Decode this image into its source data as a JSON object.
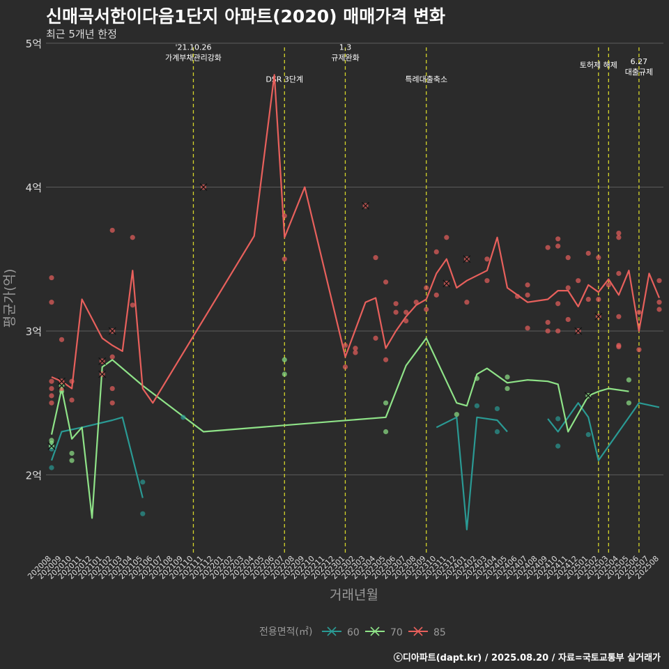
{
  "title": "신매곡서한이다음1단지 아파트(2020) 매매가격 변화",
  "subtitle": "최근 5개년 한정",
  "caption": "ⓒ디아파트(dapt.kr) / 2025.08.20 / 자료=국토교통부 실거래가",
  "chart_data": {
    "type": "line",
    "xlabel": "거래년월",
    "ylabel": "평균가(억)",
    "ylim": [
      1.45,
      5.0
    ],
    "yticks": [
      2,
      3,
      4,
      5
    ],
    "ytick_labels": [
      "2억",
      "3억",
      "4억",
      "5억"
    ],
    "grid": true,
    "legend_title": "전용면적(㎡)",
    "legend_position": "bottom",
    "categories": [
      "202008",
      "202009",
      "202010",
      "202011",
      "202012",
      "202101",
      "202102",
      "202103",
      "202104",
      "202105",
      "202106",
      "202107",
      "202108",
      "202109",
      "202110",
      "202111",
      "202112",
      "202201",
      "202202",
      "202203",
      "202204",
      "202205",
      "202206",
      "202207",
      "202208",
      "202209",
      "202210",
      "202211",
      "202212",
      "202301",
      "202302",
      "202303",
      "202304",
      "202305",
      "202306",
      "202307",
      "202308",
      "202309",
      "202310",
      "202311",
      "202312",
      "202401",
      "202402",
      "202403",
      "202404",
      "202405",
      "202406",
      "202407",
      "202408",
      "202409",
      "202410",
      "202411",
      "202412",
      "202501",
      "202502",
      "202503",
      "202504",
      "202505",
      "202506",
      "202507",
      "202508"
    ],
    "series": [
      {
        "name": "60",
        "color": "#2a9a94",
        "points": [
          [
            "202008",
            2.1
          ],
          [
            "202009",
            2.3
          ],
          [
            "202011",
            2.33
          ],
          [
            "202102",
            2.38
          ],
          [
            "202103",
            2.4
          ],
          [
            "202105",
            1.84
          ]
        ]
      },
      {
        "name": "60",
        "color": "#2a9a94",
        "points": [
          [
            "202310",
            2.33
          ],
          [
            "202312",
            2.4
          ],
          [
            "202401",
            1.62
          ],
          [
            "202402",
            2.4
          ],
          [
            "202404",
            2.38
          ],
          [
            "202405",
            2.3
          ]
        ]
      },
      {
        "name": "60",
        "color": "#2a9a94",
        "points": [
          [
            "202409",
            2.39
          ],
          [
            "202410",
            2.3
          ],
          [
            "202412",
            2.5
          ],
          [
            "202501",
            2.4
          ],
          [
            "202502",
            2.1
          ],
          [
            "202506",
            2.5
          ],
          [
            "202508",
            2.47
          ]
        ]
      },
      {
        "name": "70",
        "color": "#8fe388",
        "points": [
          [
            "202008",
            2.28
          ],
          [
            "202009",
            2.6
          ],
          [
            "202010",
            2.25
          ],
          [
            "202011",
            2.33
          ],
          [
            "202012",
            1.7
          ],
          [
            "202101",
            2.75
          ],
          [
            "202102",
            2.8
          ],
          [
            "202105",
            2.62
          ],
          [
            "202111",
            2.3
          ],
          [
            "202305",
            2.4
          ],
          [
            "202307",
            2.76
          ],
          [
            "202309",
            2.95
          ],
          [
            "202312",
            2.5
          ],
          [
            "202401",
            2.48
          ],
          [
            "202402",
            2.7
          ],
          [
            "202403",
            2.74
          ],
          [
            "202405",
            2.64
          ],
          [
            "202407",
            2.66
          ],
          [
            "202409",
            2.65
          ],
          [
            "202410",
            2.63
          ],
          [
            "202411",
            2.3
          ],
          [
            "202501",
            2.55
          ],
          [
            "202502",
            2.58
          ],
          [
            "202503",
            2.6
          ],
          [
            "202505",
            2.58
          ]
        ]
      },
      {
        "name": "85",
        "color": "#e8605c",
        "points": [
          [
            "202008",
            2.68
          ],
          [
            "202009",
            2.65
          ],
          [
            "202010",
            2.6
          ],
          [
            "202011",
            3.22
          ],
          [
            "202101",
            2.95
          ],
          [
            "202102",
            2.9
          ],
          [
            "202103",
            2.86
          ],
          [
            "202104",
            3.42
          ],
          [
            "202105",
            2.6
          ],
          [
            "202106",
            2.5
          ],
          [
            "202204",
            3.66
          ],
          [
            "202206",
            4.78
          ],
          [
            "202207",
            3.65
          ],
          [
            "202209",
            4.0
          ],
          [
            "202301",
            2.82
          ],
          [
            "202303",
            3.2
          ],
          [
            "202304",
            3.23
          ],
          [
            "202305",
            2.88
          ],
          [
            "202306",
            3.0
          ],
          [
            "202307",
            3.1
          ],
          [
            "202308",
            3.18
          ],
          [
            "202309",
            3.22
          ],
          [
            "202310",
            3.4
          ],
          [
            "202311",
            3.5
          ],
          [
            "202312",
            3.3
          ],
          [
            "202401",
            3.35
          ],
          [
            "202403",
            3.42
          ],
          [
            "202404",
            3.65
          ],
          [
            "202405",
            3.3
          ],
          [
            "202406",
            3.25
          ],
          [
            "202407",
            3.2
          ],
          [
            "202409",
            3.22
          ],
          [
            "202410",
            3.28
          ],
          [
            "202411",
            3.28
          ],
          [
            "202412",
            3.17
          ],
          [
            "202501",
            3.32
          ],
          [
            "202502",
            3.27
          ],
          [
            "202503",
            3.36
          ],
          [
            "202504",
            3.25
          ],
          [
            "202505",
            3.42
          ],
          [
            "202506",
            3.0
          ],
          [
            "202507",
            3.4
          ],
          [
            "202508",
            3.23
          ]
        ]
      }
    ],
    "scatter_points": [
      {
        "series": "60",
        "x": "202008",
        "y": 2.05
      },
      {
        "series": "60",
        "x": "202008",
        "y": 2.18
      },
      {
        "series": "60",
        "x": "202105",
        "y": 1.73
      },
      {
        "series": "60",
        "x": "202105",
        "y": 1.95
      },
      {
        "series": "60",
        "x": "202109",
        "y": 2.4
      },
      {
        "series": "60",
        "x": "202402",
        "y": 2.48
      },
      {
        "series": "60",
        "x": "202404",
        "y": 2.3
      },
      {
        "series": "60",
        "x": "202404",
        "y": 2.46
      },
      {
        "series": "60",
        "x": "202410",
        "y": 2.2
      },
      {
        "series": "60",
        "x": "202410",
        "y": 2.39
      },
      {
        "series": "60",
        "x": "202501",
        "y": 2.28
      },
      {
        "series": "70",
        "x": "202008",
        "y": 2.24
      },
      {
        "series": "70",
        "x": "202008",
        "y": 2.22
      },
      {
        "series": "70",
        "x": "202009",
        "y": 2.58
      },
      {
        "series": "70",
        "x": "202010",
        "y": 2.1
      },
      {
        "series": "70",
        "x": "202010",
        "y": 2.15
      },
      {
        "series": "70",
        "x": "202207",
        "y": 2.7
      },
      {
        "series": "70",
        "x": "202207",
        "y": 2.8
      },
      {
        "series": "70",
        "x": "202305",
        "y": 2.5
      },
      {
        "series": "70",
        "x": "202305",
        "y": 2.3
      },
      {
        "series": "70",
        "x": "202312",
        "y": 2.42
      },
      {
        "series": "70",
        "x": "202402",
        "y": 2.67
      },
      {
        "series": "70",
        "x": "202405",
        "y": 2.6
      },
      {
        "series": "70",
        "x": "202405",
        "y": 2.68
      },
      {
        "series": "70",
        "x": "202505",
        "y": 2.5
      },
      {
        "series": "70",
        "x": "202505",
        "y": 2.66
      },
      {
        "series": "85",
        "x": "202008",
        "y": 3.37
      },
      {
        "series": "85",
        "x": "202008",
        "y": 3.2
      },
      {
        "series": "85",
        "x": "202008",
        "y": 2.65
      },
      {
        "series": "85",
        "x": "202008",
        "y": 2.6
      },
      {
        "series": "85",
        "x": "202008",
        "y": 2.55
      },
      {
        "series": "85",
        "x": "202008",
        "y": 2.5
      },
      {
        "series": "85",
        "x": "202009",
        "y": 2.94
      },
      {
        "series": "85",
        "x": "202009",
        "y": 2.6
      },
      {
        "series": "85",
        "x": "202010",
        "y": 2.52
      },
      {
        "series": "85",
        "x": "202010",
        "y": 2.65
      },
      {
        "series": "85",
        "x": "202102",
        "y": 3.7
      },
      {
        "series": "85",
        "x": "202102",
        "y": 2.82
      },
      {
        "series": "85",
        "x": "202102",
        "y": 2.6
      },
      {
        "series": "85",
        "x": "202102",
        "y": 2.5
      },
      {
        "series": "85",
        "x": "202104",
        "y": 3.65
      },
      {
        "series": "85",
        "x": "202104",
        "y": 3.18
      },
      {
        "series": "85",
        "x": "202207",
        "y": 3.8
      },
      {
        "series": "85",
        "x": "202207",
        "y": 3.5
      },
      {
        "series": "85",
        "x": "202301",
        "y": 2.75
      },
      {
        "series": "85",
        "x": "202301",
        "y": 2.9
      },
      {
        "series": "85",
        "x": "202302",
        "y": 2.88
      },
      {
        "series": "85",
        "x": "202302",
        "y": 2.85
      },
      {
        "series": "85",
        "x": "202304",
        "y": 3.51
      },
      {
        "series": "85",
        "x": "202304",
        "y": 2.95
      },
      {
        "series": "85",
        "x": "202305",
        "y": 3.34
      },
      {
        "series": "85",
        "x": "202305",
        "y": 2.8
      },
      {
        "series": "85",
        "x": "202306",
        "y": 3.19
      },
      {
        "series": "85",
        "x": "202306",
        "y": 3.13
      },
      {
        "series": "85",
        "x": "202307",
        "y": 3.13
      },
      {
        "series": "85",
        "x": "202307",
        "y": 3.07
      },
      {
        "series": "85",
        "x": "202308",
        "y": 3.2
      },
      {
        "series": "85",
        "x": "202309",
        "y": 3.3
      },
      {
        "series": "85",
        "x": "202309",
        "y": 3.15
      },
      {
        "series": "85",
        "x": "202310",
        "y": 3.55
      },
      {
        "series": "85",
        "x": "202310",
        "y": 3.25
      },
      {
        "series": "85",
        "x": "202311",
        "y": 3.65
      },
      {
        "series": "85",
        "x": "202401",
        "y": 3.2
      },
      {
        "series": "85",
        "x": "202403",
        "y": 3.5
      },
      {
        "series": "85",
        "x": "202403",
        "y": 3.35
      },
      {
        "series": "85",
        "x": "202406",
        "y": 3.24
      },
      {
        "series": "85",
        "x": "202407",
        "y": 3.32
      },
      {
        "series": "85",
        "x": "202407",
        "y": 3.25
      },
      {
        "series": "85",
        "x": "202407",
        "y": 3.02
      },
      {
        "series": "85",
        "x": "202409",
        "y": 3.58
      },
      {
        "series": "85",
        "x": "202409",
        "y": 3.06
      },
      {
        "series": "85",
        "x": "202409",
        "y": 3.0
      },
      {
        "series": "85",
        "x": "202410",
        "y": 3.64
      },
      {
        "series": "85",
        "x": "202410",
        "y": 3.59
      },
      {
        "series": "85",
        "x": "202410",
        "y": 3.19
      },
      {
        "series": "85",
        "x": "202410",
        "y": 3.0
      },
      {
        "series": "85",
        "x": "202411",
        "y": 3.51
      },
      {
        "series": "85",
        "x": "202411",
        "y": 3.3
      },
      {
        "series": "85",
        "x": "202411",
        "y": 3.08
      },
      {
        "series": "85",
        "x": "202412",
        "y": 3.35
      },
      {
        "series": "85",
        "x": "202501",
        "y": 3.54
      },
      {
        "series": "85",
        "x": "202501",
        "y": 3.22
      },
      {
        "series": "85",
        "x": "202502",
        "y": 3.51
      },
      {
        "series": "85",
        "x": "202502",
        "y": 3.22
      },
      {
        "series": "85",
        "x": "202503",
        "y": 3.32
      },
      {
        "series": "85",
        "x": "202504",
        "y": 3.68
      },
      {
        "series": "85",
        "x": "202504",
        "y": 3.65
      },
      {
        "series": "85",
        "x": "202504",
        "y": 3.4
      },
      {
        "series": "85",
        "x": "202504",
        "y": 3.1
      },
      {
        "series": "85",
        "x": "202504",
        "y": 2.9
      },
      {
        "series": "85",
        "x": "202504",
        "y": 2.89
      },
      {
        "series": "85",
        "x": "202506",
        "y": 3.13
      },
      {
        "series": "85",
        "x": "202506",
        "y": 2.87
      },
      {
        "series": "85",
        "x": "202508",
        "y": 3.35
      },
      {
        "series": "85",
        "x": "202508",
        "y": 3.2
      },
      {
        "series": "85",
        "x": "202508",
        "y": 3.15
      }
    ],
    "x_markers": [
      {
        "series": "60",
        "x": "202008",
        "y": 2.2
      },
      {
        "series": "70",
        "x": "202008",
        "y": 2.2
      },
      {
        "series": "70",
        "x": "202009",
        "y": 2.62
      },
      {
        "series": "70",
        "x": "202501",
        "y": 2.55
      },
      {
        "series": "85",
        "x": "202009",
        "y": 2.65
      },
      {
        "series": "85",
        "x": "202101",
        "y": 2.79
      },
      {
        "series": "85",
        "x": "202101",
        "y": 2.7
      },
      {
        "series": "85",
        "x": "202102",
        "y": 3.0
      },
      {
        "series": "85",
        "x": "202111",
        "y": 4.0
      },
      {
        "series": "85",
        "x": "202303",
        "y": 3.87
      },
      {
        "series": "85",
        "x": "202311",
        "y": 3.33
      },
      {
        "series": "85",
        "x": "202401",
        "y": 3.5
      },
      {
        "series": "85",
        "x": "202412",
        "y": 3.0
      },
      {
        "series": "85",
        "x": "202502",
        "y": 3.1
      }
    ],
    "vlines": [
      {
        "x": "202110",
        "x_offset": 0.0,
        "lines": [
          "'21.10.26",
          "가계부채관리강화"
        ],
        "label_y": 4.93
      },
      {
        "x": "202207",
        "x_offset": 0.0,
        "lines": [
          "DSR 3단계"
        ],
        "label_y": 4.78
      },
      {
        "x": "202301",
        "x_offset": 0.0,
        "lines": [
          "1.3",
          "규제완화"
        ],
        "label_y": 4.93
      },
      {
        "x": "202309",
        "x_offset": 0.0,
        "lines": [
          "특례대출축소"
        ],
        "label_y": 4.78
      },
      {
        "x": "202502",
        "x_offset": 0.0,
        "lines": [
          "토허제 해제"
        ],
        "label_y": 4.88
      },
      {
        "x": "202503",
        "x_offset": 0.0,
        "lines": [],
        "label_y": 4.88
      },
      {
        "x": "202506",
        "x_offset": 0.0,
        "lines": [
          "6.27",
          "대출규제"
        ],
        "label_y": 4.83
      }
    ]
  }
}
